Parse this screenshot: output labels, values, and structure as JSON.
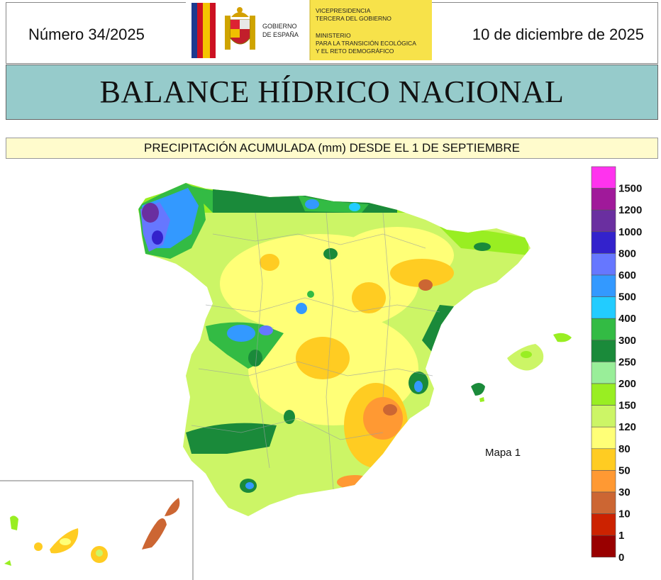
{
  "header": {
    "number": "Número 34/2025",
    "date": "10 de diciembre de 2025",
    "logo": {
      "gov_line1": "GOBIERNO",
      "gov_line2": "DE ESPAÑA",
      "vice_line1": "VICEPRESIDENCIA",
      "vice_line2": "TERCERA DEL GOBIERNO",
      "min_line1": "MINISTERIO",
      "min_line2": "PARA LA TRANSICIÓN ECOLÓGICA",
      "min_line3": "Y EL RETO DEMOGRÁFICO",
      "bg_color": "#f7e24a"
    }
  },
  "title": "BALANCE HÍDRICO NACIONAL",
  "subtitle": "PRECIPITACIÓN ACUMULADA (mm) DESDE EL 1 DE SEPTIEMBRE",
  "map": {
    "label": "Mapa 1",
    "regions": [
      "peninsula",
      "balearic-islands",
      "canary-islands"
    ]
  },
  "legend": {
    "classes": [
      {
        "label": "1500",
        "color": "#ff33ee"
      },
      {
        "label": "1200",
        "color": "#a0199a"
      },
      {
        "label": "1000",
        "color": "#6a2fa0"
      },
      {
        "label": "800",
        "color": "#3322cc"
      },
      {
        "label": "600",
        "color": "#6677ff"
      },
      {
        "label": "500",
        "color": "#3399ff"
      },
      {
        "label": "400",
        "color": "#22ccff"
      },
      {
        "label": "300",
        "color": "#33bb44"
      },
      {
        "label": "250",
        "color": "#1a8a3a"
      },
      {
        "label": "200",
        "color": "#99ee99"
      },
      {
        "label": "150",
        "color": "#99ee22"
      },
      {
        "label": "120",
        "color": "#ccf566"
      },
      {
        "label": "80",
        "color": "#ffff77"
      },
      {
        "label": "50",
        "color": "#ffcc22"
      },
      {
        "label": "30",
        "color": "#ff9933"
      },
      {
        "label": "10",
        "color": "#cc6633"
      },
      {
        "label": "1",
        "color": "#cc2200"
      },
      {
        "label": "0",
        "color": "#990000"
      }
    ]
  }
}
